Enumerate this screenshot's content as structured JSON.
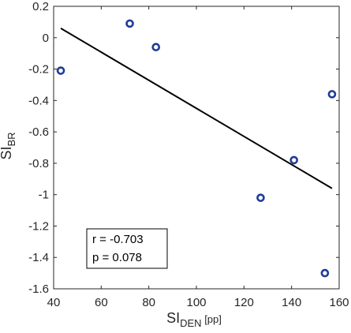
{
  "chart_data": {
    "type": "scatter",
    "xlim": [
      40,
      160
    ],
    "ylim": [
      -1.6,
      0.2
    ],
    "xticks": [
      40,
      60,
      80,
      100,
      120,
      140,
      160
    ],
    "yticks": [
      -1.6,
      -1.4,
      -1.2,
      -1,
      -0.8,
      -0.6,
      -0.4,
      -0.2,
      0,
      0.2
    ],
    "xlabel": {
      "main": "SI",
      "sub": "DEN",
      "suffix": " [pp]"
    },
    "ylabel": {
      "main": "SI",
      "sub": "BR"
    },
    "points": [
      {
        "x": 43,
        "y": -0.21
      },
      {
        "x": 72,
        "y": 0.09
      },
      {
        "x": 83,
        "y": -0.06
      },
      {
        "x": 127,
        "y": -1.02
      },
      {
        "x": 141,
        "y": -0.78
      },
      {
        "x": 154,
        "y": -1.5
      },
      {
        "x": 157,
        "y": -0.36
      }
    ],
    "fit_line": {
      "x": [
        43,
        157
      ],
      "y": [
        0.06,
        -0.96
      ]
    },
    "annotation": {
      "r": "r = -0.703",
      "p": "p = 0.078"
    },
    "marker_color": "#1f3c99",
    "line_color": "#000000"
  }
}
